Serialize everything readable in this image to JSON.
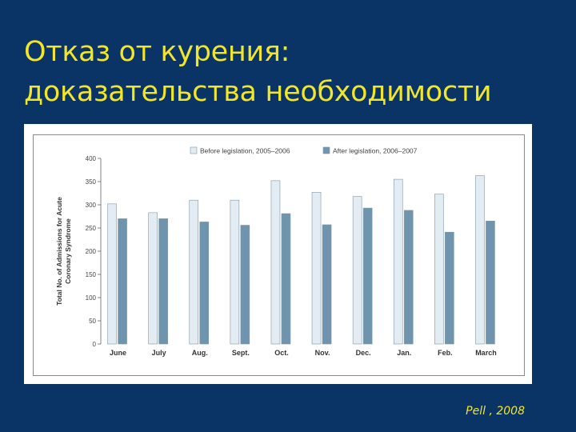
{
  "slide": {
    "title_line1": "Отказ от курения:",
    "title_line2": "доказательства необходимости",
    "citation": "Pell , 2008"
  },
  "chart_data": {
    "type": "bar",
    "title": "",
    "xlabel": "",
    "ylabel": "Total No. of Admissions for Acute Coronary Syndrome",
    "ylim": [
      0,
      400
    ],
    "yticks": [
      0,
      50,
      100,
      150,
      200,
      250,
      300,
      350,
      400
    ],
    "categories": [
      "June",
      "July",
      "Aug.",
      "Sept.",
      "Oct.",
      "Nov.",
      "Dec.",
      "Jan.",
      "Feb.",
      "March"
    ],
    "series": [
      {
        "name": "Before legislation, 2005–2006",
        "color": "#e3ecf3",
        "values": [
          302,
          283,
          310,
          310,
          352,
          327,
          318,
          355,
          323,
          363
        ]
      },
      {
        "name": "After legislation, 2006–2007",
        "color": "#6e95ad",
        "values": [
          270,
          270,
          263,
          256,
          281,
          257,
          293,
          288,
          241,
          265
        ]
      }
    ],
    "legend_position": "top",
    "grid": false
  }
}
